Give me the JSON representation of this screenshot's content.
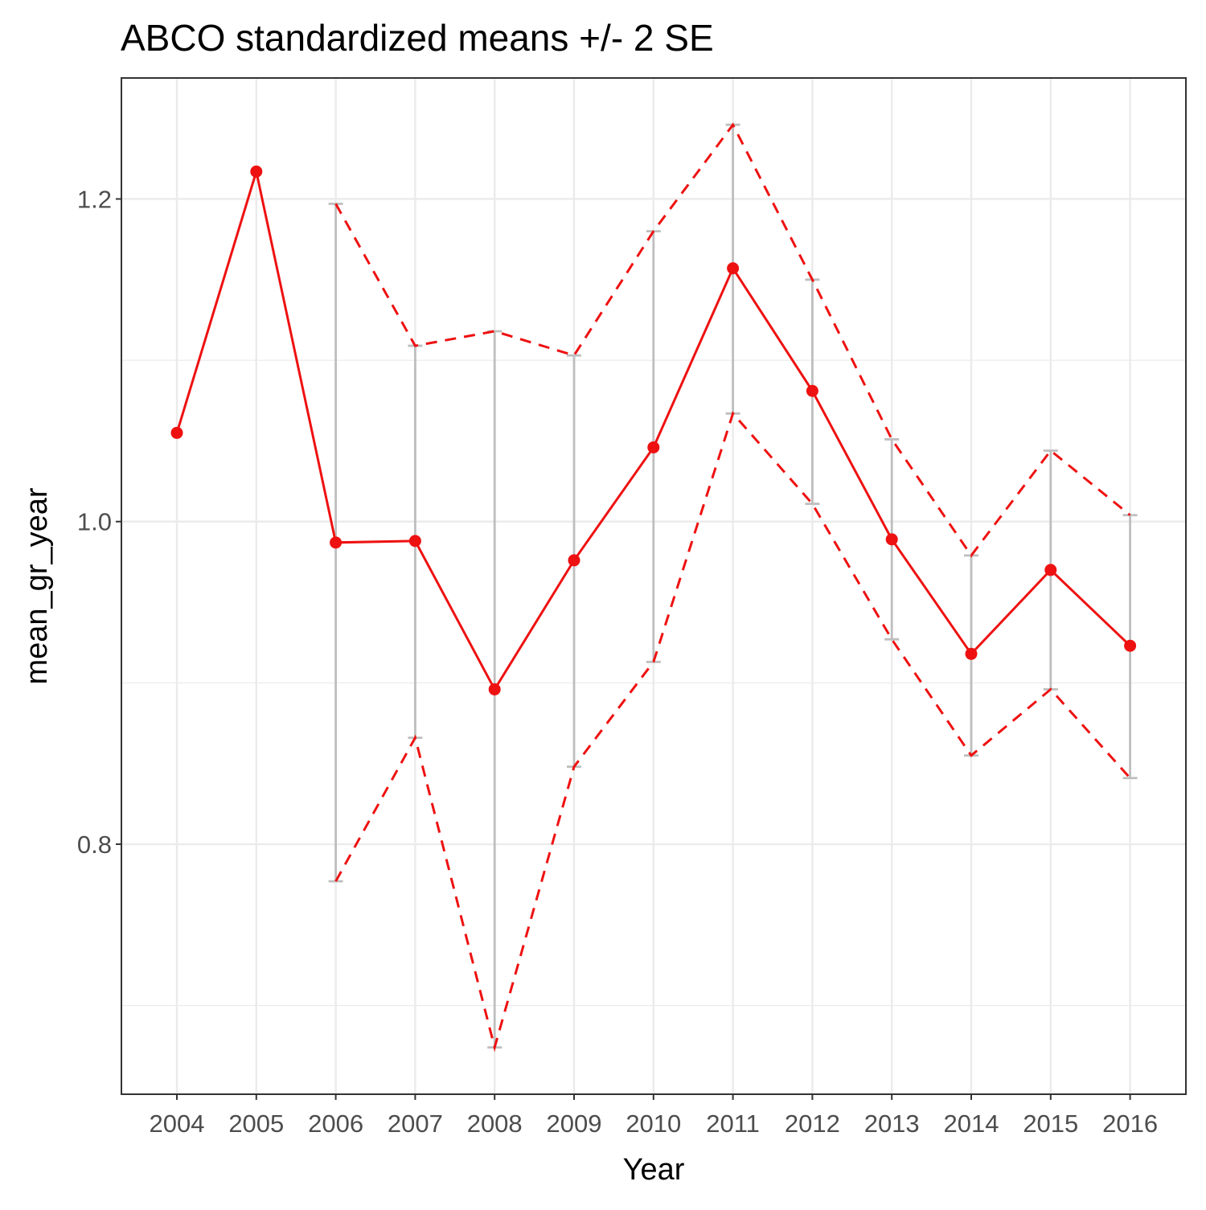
{
  "chart_data": {
    "type": "line",
    "title": "ABCO standardized means +/- 2 SE",
    "xlabel": "Year",
    "ylabel": "mean_gr_year",
    "categories": [
      "2004",
      "2005",
      "2006",
      "2007",
      "2008",
      "2009",
      "2010",
      "2011",
      "2012",
      "2013",
      "2014",
      "2015",
      "2016"
    ],
    "yticks": [
      0.8,
      1.0,
      1.2
    ],
    "ytick_labels": [
      "0.8",
      "1.0",
      "1.2"
    ],
    "ylim": [
      0.645,
      1.275
    ],
    "grid": true,
    "series": [
      {
        "role": "mean",
        "line_style": "solid",
        "markers": true,
        "values": [
          1.055,
          1.217,
          0.987,
          0.988,
          0.896,
          0.976,
          1.046,
          1.157,
          1.081,
          0.989,
          0.918,
          0.97,
          0.923
        ]
      },
      {
        "role": "upper",
        "line_style": "dashed",
        "values": [
          null,
          null,
          1.197,
          1.109,
          1.118,
          1.103,
          1.18,
          1.246,
          1.15,
          1.051,
          0.979,
          1.044,
          1.004
        ]
      },
      {
        "role": "lower",
        "line_style": "dashed",
        "values": [
          null,
          null,
          0.777,
          0.866,
          0.674,
          0.848,
          0.913,
          1.067,
          1.011,
          0.927,
          0.855,
          0.896,
          0.841
        ]
      }
    ],
    "colors": {
      "line": "#ee1111",
      "errorbar": "#bebebe",
      "grid": "#ebebeb",
      "panel_border": "#333333"
    }
  }
}
